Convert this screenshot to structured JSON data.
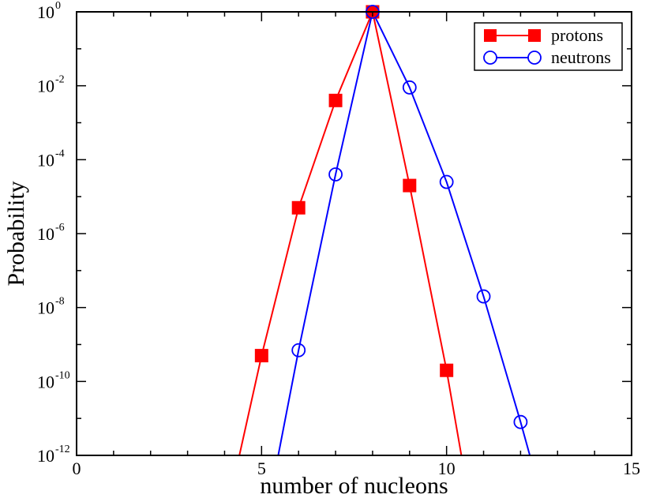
{
  "chart_data": {
    "type": "line",
    "xlabel": "number of nucleons",
    "ylabel": "Probability",
    "xlim": [
      0,
      15
    ],
    "ylim": [
      1e-12,
      1
    ],
    "y_scale": "log",
    "grid": false,
    "legend_position": "top-right",
    "x_ticks": [
      "0",
      "5",
      "10",
      "15"
    ],
    "y_ticks": [
      {
        "base": "10",
        "exp": "0",
        "value": 0
      },
      {
        "base": "10",
        "exp": "-2",
        "value": -2
      },
      {
        "base": "10",
        "exp": "-4",
        "value": -4
      },
      {
        "base": "10",
        "exp": "-6",
        "value": -6
      },
      {
        "base": "10",
        "exp": "-8",
        "value": -8
      },
      {
        "base": "10",
        "exp": "-10",
        "value": -10
      },
      {
        "base": "10",
        "exp": "-12",
        "value": -12
      }
    ],
    "series": [
      {
        "name": "protons",
        "color": "#ff0000",
        "marker": "filled-square",
        "x": [
          4.4,
          5,
          6,
          7,
          8,
          9,
          10,
          10.4
        ],
        "y": [
          1e-12,
          5e-10,
          5e-06,
          0.004,
          1.0,
          2e-05,
          2e-10,
          1e-12
        ],
        "marker_points": [
          5,
          6,
          7,
          8,
          9,
          10
        ]
      },
      {
        "name": "neutrons",
        "color": "#0000ff",
        "marker": "open-circle",
        "x": [
          5.45,
          6,
          7,
          8,
          9,
          10,
          11,
          12,
          12.25
        ],
        "y": [
          1e-12,
          7e-10,
          4e-05,
          1.0,
          0.009,
          2.5e-05,
          2e-08,
          8e-12,
          1e-12
        ],
        "marker_points": [
          6,
          7,
          8,
          9,
          10,
          11,
          12
        ]
      }
    ]
  }
}
